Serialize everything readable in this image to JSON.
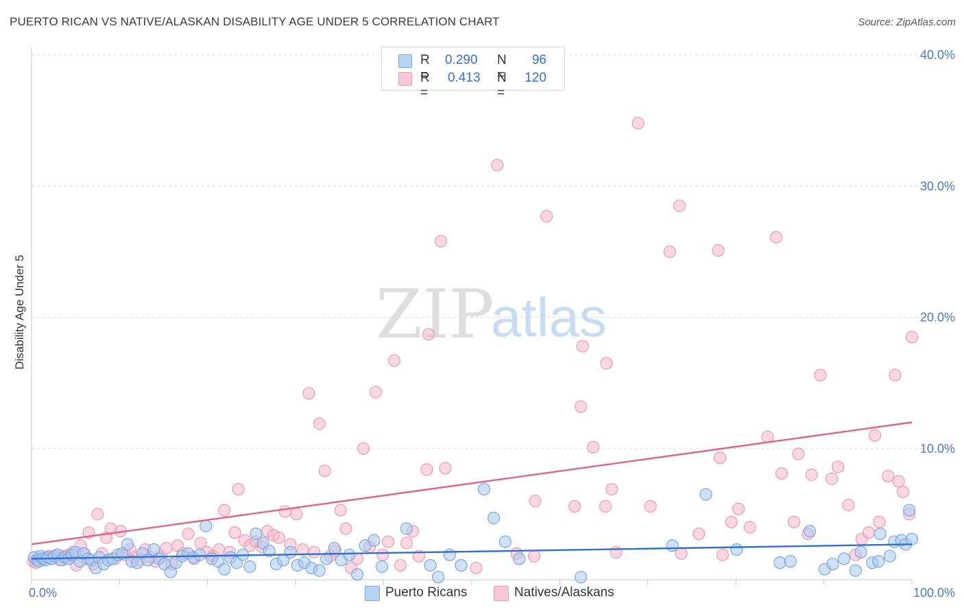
{
  "title": "PUERTO RICAN VS NATIVE/ALASKAN DISABILITY AGE UNDER 5 CORRELATION CHART",
  "source": "Source: ZipAtlas.com",
  "watermark": {
    "zip": "ZIP",
    "atlas": "atlas"
  },
  "legend": {
    "series1": {
      "r_label": "R =",
      "r_value": "0.290",
      "n_label": "N =",
      "n_value": "96"
    },
    "series2": {
      "r_label": "R =",
      "r_value": "0.413",
      "n_label": "N =",
      "n_value": "120"
    }
  },
  "colors": {
    "blue_fill": "#a9c8f0",
    "blue_stroke": "#7aa6e0",
    "blue_line": "#2f6fd0",
    "pink_fill": "#f6b8cc",
    "pink_stroke": "#ec9ab5",
    "pink_line": "#e0608e",
    "grid": "#d8d8d8",
    "tick_text": "#4a78c4"
  },
  "chart_data": {
    "type": "scatter",
    "title": "PUERTO RICAN VS NATIVE/ALASKAN DISABILITY AGE UNDER 5 CORRELATION CHART",
    "xlabel": "",
    "ylabel": "Disability Age Under 5",
    "xlim": [
      0,
      100
    ],
    "ylim": [
      0,
      40
    ],
    "x_tick_labels": [
      "0.0%",
      "100.0%"
    ],
    "y_ticks": [
      10,
      20,
      30,
      40
    ],
    "y_tick_labels": [
      "10.0%",
      "20.0%",
      "30.0%",
      "40.0%"
    ],
    "grid": true,
    "legend_position": "top-center",
    "series": [
      {
        "name": "Puerto Ricans",
        "r": 0.29,
        "n": 96,
        "trend": {
          "x": [
            0,
            100
          ],
          "y": [
            1.6,
            2.7
          ]
        },
        "points": [
          [
            0.3,
            1.7
          ],
          [
            0.6,
            1.5
          ],
          [
            0.8,
            1.4
          ],
          [
            1.0,
            1.8
          ],
          [
            1.3,
            1.6
          ],
          [
            1.6,
            1.5
          ],
          [
            1.9,
            1.7
          ],
          [
            2.3,
            1.6
          ],
          [
            2.6,
            1.8
          ],
          [
            3.0,
            1.9
          ],
          [
            3.4,
            1.5
          ],
          [
            3.8,
            1.7
          ],
          [
            4.2,
            1.6
          ],
          [
            4.6,
            1.9
          ],
          [
            5.0,
            2.1
          ],
          [
            5.5,
            1.4
          ],
          [
            5.9,
            2.0
          ],
          [
            6.4,
            1.6
          ],
          [
            6.8,
            1.5
          ],
          [
            7.3,
            0.9
          ],
          [
            7.7,
            1.7
          ],
          [
            8.2,
            1.2
          ],
          [
            8.7,
            1.5
          ],
          [
            9.2,
            1.6
          ],
          [
            9.8,
            1.9
          ],
          [
            10.3,
            2.0
          ],
          [
            10.9,
            2.7
          ],
          [
            11.4,
            1.4
          ],
          [
            12.0,
            1.3
          ],
          [
            12.6,
            2.0
          ],
          [
            13.2,
            1.5
          ],
          [
            13.9,
            2.3
          ],
          [
            14.5,
            1.6
          ],
          [
            15.1,
            1.2
          ],
          [
            15.8,
            0.6
          ],
          [
            16.4,
            1.3
          ],
          [
            17.1,
            1.8
          ],
          [
            17.8,
            2.0
          ],
          [
            18.4,
            1.7
          ],
          [
            19.1,
            1.9
          ],
          [
            19.8,
            4.1
          ],
          [
            20.5,
            1.6
          ],
          [
            21.2,
            1.4
          ],
          [
            21.9,
            0.8
          ],
          [
            22.6,
            1.7
          ],
          [
            23.3,
            1.3
          ],
          [
            24.0,
            1.9
          ],
          [
            24.8,
            1.0
          ],
          [
            25.5,
            3.5
          ],
          [
            26.3,
            2.8
          ],
          [
            27.0,
            2.2
          ],
          [
            27.8,
            1.2
          ],
          [
            28.6,
            1.5
          ],
          [
            29.4,
            2.1
          ],
          [
            30.2,
            1.1
          ],
          [
            31.0,
            1.3
          ],
          [
            31.8,
            0.9
          ],
          [
            32.7,
            0.7
          ],
          [
            33.5,
            1.6
          ],
          [
            34.4,
            2.4
          ],
          [
            35.2,
            1.5
          ],
          [
            36.1,
            1.9
          ],
          [
            37.0,
            0.4
          ],
          [
            37.9,
            2.6
          ],
          [
            38.9,
            3.0
          ],
          [
            39.8,
            1.0
          ],
          [
            42.6,
            3.9
          ],
          [
            45.3,
            1.1
          ],
          [
            46.2,
            0.2
          ],
          [
            47.5,
            1.9
          ],
          [
            48.8,
            1.1
          ],
          [
            51.4,
            6.9
          ],
          [
            52.5,
            4.7
          ],
          [
            53.8,
            2.9
          ],
          [
            55.4,
            1.6
          ],
          [
            62.4,
            0.2
          ],
          [
            72.8,
            2.6
          ],
          [
            76.6,
            6.5
          ],
          [
            80.1,
            2.3
          ],
          [
            85.0,
            1.3
          ],
          [
            86.2,
            1.4
          ],
          [
            88.4,
            3.7
          ],
          [
            90.1,
            0.8
          ],
          [
            91.0,
            1.2
          ],
          [
            92.3,
            1.6
          ],
          [
            93.6,
            0.7
          ],
          [
            94.2,
            2.1
          ],
          [
            95.5,
            1.3
          ],
          [
            96.2,
            1.4
          ],
          [
            96.4,
            3.5
          ],
          [
            97.5,
            1.8
          ],
          [
            98.0,
            2.9
          ],
          [
            98.8,
            3.0
          ],
          [
            99.3,
            2.7
          ],
          [
            99.7,
            5.3
          ],
          [
            100.0,
            3.1
          ]
        ]
      },
      {
        "name": "Natives/Alaskans",
        "r": 0.413,
        "n": 120,
        "trend": {
          "x": [
            0,
            100
          ],
          "y": [
            2.7,
            12.0
          ]
        },
        "points": [
          [
            0.2,
            1.4
          ],
          [
            0.5,
            1.3
          ],
          [
            0.9,
            1.6
          ],
          [
            1.2,
            1.5
          ],
          [
            1.6,
            1.7
          ],
          [
            2.0,
            1.8
          ],
          [
            2.4,
            1.6
          ],
          [
            2.9,
            1.9
          ],
          [
            3.3,
            1.5
          ],
          [
            3.8,
            1.8
          ],
          [
            4.2,
            1.9
          ],
          [
            4.7,
            2.1
          ],
          [
            5.1,
            1.1
          ],
          [
            5.6,
            2.6
          ],
          [
            6.0,
            2.0
          ],
          [
            6.5,
            3.6
          ],
          [
            7.0,
            1.2
          ],
          [
            7.5,
            5.0
          ],
          [
            8.0,
            2.0
          ],
          [
            8.5,
            3.2
          ],
          [
            9.0,
            3.9
          ],
          [
            9.5,
            1.6
          ],
          [
            10.1,
            3.7
          ],
          [
            10.6,
            1.9
          ],
          [
            11.2,
            2.3
          ],
          [
            11.7,
            1.7
          ],
          [
            12.3,
            1.5
          ],
          [
            12.9,
            2.3
          ],
          [
            13.5,
            1.7
          ],
          [
            14.1,
            1.4
          ],
          [
            14.7,
            1.8
          ],
          [
            15.3,
            2.4
          ],
          [
            15.9,
            1.2
          ],
          [
            16.6,
            2.6
          ],
          [
            17.2,
            2.0
          ],
          [
            17.8,
            3.5
          ],
          [
            18.5,
            1.6
          ],
          [
            19.2,
            2.8
          ],
          [
            19.9,
            2.1
          ],
          [
            20.6,
            1.8
          ],
          [
            21.3,
            2.3
          ],
          [
            21.9,
            5.3
          ],
          [
            22.5,
            2.1
          ],
          [
            23.1,
            3.6
          ],
          [
            23.5,
            6.9
          ],
          [
            24.2,
            3.0
          ],
          [
            24.8,
            2.6
          ],
          [
            25.5,
            2.9
          ],
          [
            26.2,
            2.5
          ],
          [
            26.8,
            3.7
          ],
          [
            27.5,
            3.4
          ],
          [
            28.1,
            3.2
          ],
          [
            28.8,
            5.2
          ],
          [
            29.4,
            2.7
          ],
          [
            30.1,
            5.0
          ],
          [
            30.8,
            2.3
          ],
          [
            31.5,
            14.2
          ],
          [
            32.1,
            2.1
          ],
          [
            32.7,
            11.9
          ],
          [
            33.3,
            8.3
          ],
          [
            33.9,
            1.8
          ],
          [
            34.5,
            2.2
          ],
          [
            35.1,
            5.3
          ],
          [
            35.7,
            3.9
          ],
          [
            36.3,
            0.9
          ],
          [
            37.0,
            1.6
          ],
          [
            37.7,
            10.0
          ],
          [
            38.4,
            2.5
          ],
          [
            39.1,
            14.3
          ],
          [
            39.9,
            1.9
          ],
          [
            40.5,
            2.9
          ],
          [
            41.2,
            16.7
          ],
          [
            41.9,
            1.1
          ],
          [
            42.6,
            2.8
          ],
          [
            43.3,
            3.7
          ],
          [
            44.0,
            1.8
          ],
          [
            44.9,
            8.4
          ],
          [
            45.1,
            18.7
          ],
          [
            46.5,
            25.8
          ],
          [
            47.0,
            8.5
          ],
          [
            50.5,
            0.9
          ],
          [
            52.9,
            31.6
          ],
          [
            55.1,
            2.0
          ],
          [
            57.1,
            1.8
          ],
          [
            57.2,
            6.0
          ],
          [
            58.5,
            27.7
          ],
          [
            61.7,
            5.6
          ],
          [
            62.4,
            13.2
          ],
          [
            62.6,
            17.8
          ],
          [
            63.8,
            10.1
          ],
          [
            65.2,
            5.6
          ],
          [
            65.3,
            16.5
          ],
          [
            65.9,
            6.9
          ],
          [
            66.4,
            2.1
          ],
          [
            68.9,
            34.8
          ],
          [
            70.3,
            5.6
          ],
          [
            72.5,
            25.0
          ],
          [
            73.6,
            28.5
          ],
          [
            73.8,
            2.0
          ],
          [
            75.8,
            3.5
          ],
          [
            78.0,
            25.1
          ],
          [
            78.2,
            9.3
          ],
          [
            78.5,
            1.9
          ],
          [
            79.5,
            4.4
          ],
          [
            80.3,
            5.4
          ],
          [
            81.6,
            4.0
          ],
          [
            83.6,
            10.9
          ],
          [
            84.6,
            26.1
          ],
          [
            85.2,
            8.1
          ],
          [
            86.6,
            4.4
          ],
          [
            87.1,
            9.6
          ],
          [
            88.2,
            3.5
          ],
          [
            88.6,
            8.0
          ],
          [
            89.6,
            15.6
          ],
          [
            90.9,
            7.7
          ],
          [
            91.6,
            8.6
          ],
          [
            92.8,
            5.7
          ],
          [
            93.6,
            1.9
          ],
          [
            94.3,
            3.1
          ],
          [
            95.1,
            3.6
          ],
          [
            95.8,
            11.0
          ],
          [
            96.3,
            4.4
          ],
          [
            97.3,
            7.9
          ],
          [
            98.1,
            15.6
          ],
          [
            98.5,
            7.5
          ],
          [
            99.0,
            6.7
          ],
          [
            99.7,
            5.0
          ],
          [
            100.0,
            18.5
          ]
        ]
      }
    ]
  },
  "bottom_legend": {
    "series1": "Puerto Ricans",
    "series2": "Natives/Alaskans"
  }
}
